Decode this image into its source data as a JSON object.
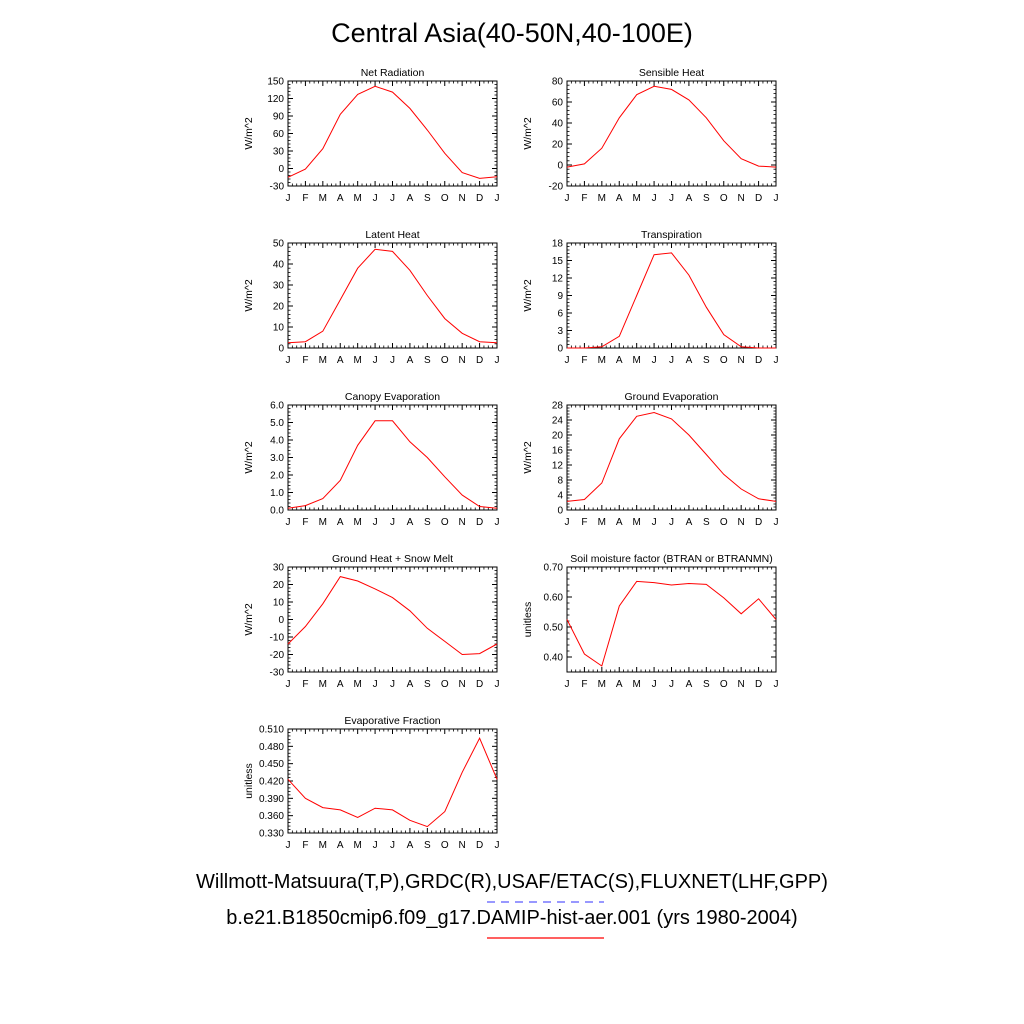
{
  "title": "Central Asia(40-50N,40-100E)",
  "legend": {
    "obs_label": "Willmott-Matsuura(T,P),GRDC(R),USAF/ETAC(S),FLUXNET(LHF,GPP)",
    "model_label": "b.e21.B1850cmip6.f09_g17.DAMIP-hist-aer.001 (yrs 1980-2004)",
    "obs_color": "#5a5aff",
    "model_color": "#ff0000"
  },
  "colors": {
    "series": "#ff0000",
    "axis": "#000000"
  },
  "chart_data": [
    {
      "type": "line",
      "title": "Net Radiation",
      "ylabel": "W/m^2",
      "categories": [
        "J",
        "F",
        "M",
        "A",
        "M",
        "J",
        "J",
        "A",
        "S",
        "O",
        "N",
        "D",
        "J"
      ],
      "ylim": [
        -30,
        150
      ],
      "yticks": [
        "-30",
        "0",
        "30",
        "60",
        "90",
        "120",
        "150"
      ],
      "series": [
        {
          "values": [
            -15,
            -1,
            34,
            93,
            127,
            141,
            131,
            103,
            66,
            26,
            -7,
            -17,
            -14
          ]
        }
      ]
    },
    {
      "type": "line",
      "title": "Sensible Heat",
      "ylabel": "W/m^2",
      "categories": [
        "J",
        "F",
        "M",
        "A",
        "M",
        "J",
        "J",
        "A",
        "S",
        "O",
        "N",
        "D",
        "J"
      ],
      "ylim": [
        -20,
        80
      ],
      "yticks": [
        "-20",
        "0",
        "20",
        "40",
        "60",
        "80"
      ],
      "series": [
        {
          "values": [
            -2,
            1,
            16,
            45,
            67,
            75,
            72,
            62,
            45,
            23,
            6,
            -1,
            -2
          ]
        }
      ]
    },
    {
      "type": "line",
      "title": "Latent Heat",
      "ylabel": "W/m^2",
      "categories": [
        "J",
        "F",
        "M",
        "A",
        "M",
        "J",
        "J",
        "A",
        "S",
        "O",
        "N",
        "D",
        "J"
      ],
      "ylim": [
        0,
        50
      ],
      "yticks": [
        "0",
        "10",
        "20",
        "30",
        "40",
        "50"
      ],
      "series": [
        {
          "values": [
            2.5,
            3,
            8,
            23,
            38,
            47,
            46,
            37,
            25,
            14,
            7,
            3,
            2.5
          ]
        }
      ]
    },
    {
      "type": "line",
      "title": "Transpiration",
      "ylabel": "W/m^2",
      "categories": [
        "J",
        "F",
        "M",
        "A",
        "M",
        "J",
        "J",
        "A",
        "S",
        "O",
        "N",
        "D",
        "J"
      ],
      "ylim": [
        0,
        18
      ],
      "yticks": [
        "0",
        "3",
        "6",
        "9",
        "12",
        "15",
        "18"
      ],
      "series": [
        {
          "values": [
            0,
            0,
            0.2,
            2,
            9,
            16,
            16.3,
            12.5,
            7,
            2.3,
            0.2,
            0,
            0
          ]
        }
      ]
    },
    {
      "type": "line",
      "title": "Canopy Evaporation",
      "ylabel": "W/m^2",
      "categories": [
        "J",
        "F",
        "M",
        "A",
        "M",
        "J",
        "J",
        "A",
        "S",
        "O",
        "N",
        "D",
        "J"
      ],
      "ylim": [
        0,
        6
      ],
      "yticks": [
        "0.0",
        "1.0",
        "2.0",
        "3.0",
        "4.0",
        "5.0",
        "6.0"
      ],
      "series": [
        {
          "values": [
            0.1,
            0.25,
            0.65,
            1.7,
            3.7,
            5.1,
            5.1,
            3.9,
            3.0,
            1.9,
            0.85,
            0.2,
            0.1
          ]
        }
      ]
    },
    {
      "type": "line",
      "title": "Ground Evaporation",
      "ylabel": "W/m^2",
      "categories": [
        "J",
        "F",
        "M",
        "A",
        "M",
        "J",
        "J",
        "A",
        "S",
        "O",
        "N",
        "D",
        "J"
      ],
      "ylim": [
        0,
        28
      ],
      "yticks": [
        "0",
        "4",
        "8",
        "12",
        "16",
        "20",
        "24",
        "28"
      ],
      "series": [
        {
          "values": [
            2.3,
            2.8,
            7.2,
            19,
            25,
            26,
            24.3,
            20,
            14.8,
            9.5,
            5.6,
            3,
            2.3
          ]
        }
      ]
    },
    {
      "type": "line",
      "title": "Ground Heat + Snow Melt",
      "ylabel": "W/m^2",
      "categories": [
        "J",
        "F",
        "M",
        "A",
        "M",
        "J",
        "J",
        "A",
        "S",
        "O",
        "N",
        "D",
        "J"
      ],
      "ylim": [
        -30,
        30
      ],
      "yticks": [
        "-30",
        "-20",
        "-10",
        "0",
        "10",
        "20",
        "30"
      ],
      "series": [
        {
          "values": [
            -14,
            -4,
            9,
            24.5,
            22,
            17.5,
            12.5,
            5,
            -5,
            -12.5,
            -20,
            -19.5,
            -14
          ]
        }
      ]
    },
    {
      "type": "line",
      "title": "Soil moisture factor (BTRAN or BTRANMN)",
      "ylabel": "unitless",
      "categories": [
        "J",
        "F",
        "M",
        "A",
        "M",
        "J",
        "J",
        "A",
        "S",
        "O",
        "N",
        "D",
        "J"
      ],
      "ylim": [
        0.35,
        0.7
      ],
      "yticks": [
        "0.40",
        "0.50",
        "0.60",
        "0.70"
      ],
      "ytick_values": [
        0.4,
        0.5,
        0.6,
        0.7
      ],
      "series": [
        {
          "values": [
            0.525,
            0.41,
            0.37,
            0.57,
            0.652,
            0.648,
            0.64,
            0.645,
            0.642,
            0.597,
            0.544,
            0.594,
            0.525
          ]
        }
      ]
    },
    {
      "type": "line",
      "title": "Evaporative Fraction",
      "ylabel": "unitless",
      "categories": [
        "J",
        "F",
        "M",
        "A",
        "M",
        "J",
        "J",
        "A",
        "S",
        "O",
        "N",
        "D",
        "J"
      ],
      "ylim": [
        0.33,
        0.51
      ],
      "yticks": [
        "0.330",
        "0.360",
        "0.390",
        "0.420",
        "0.450",
        "0.480",
        "0.510"
      ],
      "series": [
        {
          "values": [
            0.423,
            0.39,
            0.374,
            0.37,
            0.357,
            0.373,
            0.37,
            0.352,
            0.341,
            0.367,
            0.435,
            0.494,
            0.423
          ]
        }
      ]
    }
  ]
}
